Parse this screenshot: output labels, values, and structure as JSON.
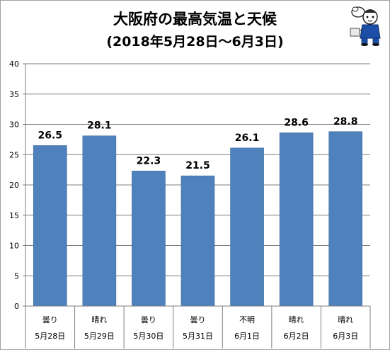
{
  "title": {
    "line1": "大阪府の最高気温と天候",
    "line2": "(2018年5月28日～6月3日)"
  },
  "colors": {
    "bar": "#4f81bd",
    "bar_edge": "#3b6a9f",
    "axis": "#7f7f7f",
    "grid": "#7f7f7f",
    "text": "#000000"
  },
  "icons": [
    "cartoon-mascot-icon"
  ],
  "chart_data": {
    "type": "bar",
    "title": "大阪府の最高気温と天候",
    "subtitle": "(2018年5月28日～6月3日)",
    "categories": [
      "5月28日",
      "5月29日",
      "5月30日",
      "5月31日",
      "6月1日",
      "6月2日",
      "6月3日"
    ],
    "weather": [
      "曇り",
      "晴れ",
      "曇り",
      "曇り",
      "不明",
      "晴れ",
      "晴れ"
    ],
    "values": [
      26.5,
      28.1,
      22.3,
      21.5,
      26.1,
      28.6,
      28.8
    ],
    "data_labels": [
      "26.5",
      "28.1",
      "22.3",
      "21.5",
      "26.1",
      "28.6",
      "28.8"
    ],
    "yticks": [
      "0",
      "5",
      "10",
      "15",
      "20",
      "25",
      "30",
      "35",
      "40"
    ],
    "ylim": [
      0,
      40
    ],
    "xlabel": "",
    "ylabel": "",
    "grid": true,
    "legend": "none"
  }
}
